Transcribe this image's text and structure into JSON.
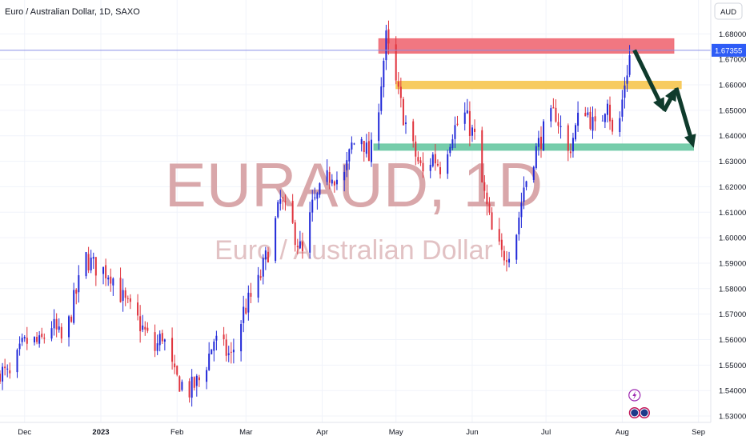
{
  "header": {
    "title": "Euro / Australian Dollar, 1D, SAXO",
    "currency_button": "AUD"
  },
  "watermark": {
    "symbol": "EURAUD, 1D",
    "name": "Euro / Australian Dollar"
  },
  "colors": {
    "up": "#2129d8",
    "down": "#e0333d",
    "resistance_zone": "#f0707a",
    "mid_zone": "#f7c856",
    "support_zone": "#6fcaa6",
    "arrow": "#0f3b2c",
    "last_price_tag": "#2e5cf6",
    "crosshair_line": "#8a8fe6"
  },
  "chart_data": {
    "type": "candlestick",
    "title": "Euro / Australian Dollar, 1D, SAXO",
    "y_axis": {
      "range": [
        1.5275,
        1.6845
      ],
      "tick_labels": [
        "1.68000",
        "1.67000",
        "1.66000",
        "1.65000",
        "1.64000",
        "1.63000",
        "1.62000",
        "1.61000",
        "1.60000",
        "1.59000",
        "1.58000",
        "1.57000",
        "1.56000",
        "1.55000",
        "1.54000",
        "1.53000"
      ],
      "tick_values": [
        1.68,
        1.67,
        1.66,
        1.65,
        1.64,
        1.63,
        1.62,
        1.61,
        1.6,
        1.59,
        1.58,
        1.57,
        1.56,
        1.55,
        1.54,
        1.53
      ]
    },
    "x_axis": {
      "range": [
        "2022-11-21",
        "2023-09-06"
      ],
      "tick_labels": [
        "Dec",
        "2023",
        "Feb",
        "Mar",
        "Apr",
        "May",
        "Jun",
        "Jul",
        "Aug",
        "Sep"
      ],
      "tick_dates": [
        "2022-12-01",
        "2023-01-01",
        "2023-02-01",
        "2023-03-01",
        "2023-04-01",
        "2023-05-01",
        "2023-06-01",
        "2023-07-01",
        "2023-08-01",
        "2023-09-01"
      ]
    },
    "last_price": 1.67355,
    "last_price_label": "1.67355",
    "grid": true,
    "close_path": [
      [
        "2022-11-21",
        1.548
      ],
      [
        "2022-11-25",
        1.545
      ],
      [
        "2022-11-30",
        1.557
      ],
      [
        "2022-12-03",
        1.56
      ],
      [
        "2022-12-07",
        1.558
      ],
      [
        "2022-12-12",
        1.566
      ],
      [
        "2022-12-17",
        1.558
      ],
      [
        "2022-12-21",
        1.575
      ],
      [
        "2022-12-26",
        1.592
      ],
      [
        "2022-12-29",
        1.589
      ],
      [
        "2023-01-05",
        1.586
      ],
      [
        "2023-01-11",
        1.574
      ],
      [
        "2023-01-17",
        1.566
      ],
      [
        "2023-01-23",
        1.556
      ],
      [
        "2023-01-26",
        1.562
      ],
      [
        "2023-01-31",
        1.545
      ],
      [
        "2023-02-06",
        1.54
      ],
      [
        "2023-02-11",
        1.545
      ],
      [
        "2023-02-16",
        1.56
      ],
      [
        "2023-02-23",
        1.553
      ],
      [
        "2023-02-28",
        1.571
      ],
      [
        "2023-03-06",
        1.582
      ],
      [
        "2023-03-11",
        1.598
      ],
      [
        "2023-03-15",
        1.614
      ],
      [
        "2023-03-20",
        1.604
      ],
      [
        "2023-03-24",
        1.593
      ],
      [
        "2023-03-28",
        1.612
      ],
      [
        "2023-04-05",
        1.626
      ],
      [
        "2023-04-09",
        1.62
      ],
      [
        "2023-04-13",
        1.636
      ],
      [
        "2023-04-17",
        1.64
      ],
      [
        "2023-04-20",
        1.631
      ],
      [
        "2023-04-22",
        1.637
      ],
      [
        "2023-04-27",
        1.678
      ],
      [
        "2023-04-30",
        1.664
      ],
      [
        "2023-05-03",
        1.652
      ],
      [
        "2023-05-07",
        1.637
      ],
      [
        "2023-05-12",
        1.625
      ],
      [
        "2023-05-16",
        1.632
      ],
      [
        "2023-05-19",
        1.628
      ],
      [
        "2023-05-24",
        1.642
      ],
      [
        "2023-05-29",
        1.648
      ],
      [
        "2023-06-02",
        1.639
      ],
      [
        "2023-06-05",
        1.621
      ],
      [
        "2023-06-09",
        1.602
      ],
      [
        "2023-06-13",
        1.593
      ],
      [
        "2023-06-18",
        1.597
      ],
      [
        "2023-06-22",
        1.62
      ],
      [
        "2023-06-26",
        1.632
      ],
      [
        "2023-07-01",
        1.644
      ],
      [
        "2023-07-05",
        1.649
      ],
      [
        "2023-07-10",
        1.633
      ],
      [
        "2023-07-14",
        1.646
      ],
      [
        "2023-07-17",
        1.651
      ],
      [
        "2023-07-22",
        1.64
      ],
      [
        "2023-07-26",
        1.656
      ],
      [
        "2023-07-29",
        1.632
      ],
      [
        "2023-08-02",
        1.661
      ],
      [
        "2023-08-05",
        1.676
      ],
      [
        "2023-08-06",
        1.6735
      ]
    ],
    "annotations": [
      {
        "type": "zone",
        "label": "resistance",
        "x_range": [
          "2023-04-24",
          "2023-08-22"
        ],
        "y_range": [
          1.6724,
          1.6781
        ]
      },
      {
        "type": "zone",
        "label": "mid",
        "x_range": [
          "2023-05-01",
          "2023-08-25"
        ],
        "y_range": [
          1.6585,
          1.6614
        ]
      },
      {
        "type": "zone",
        "label": "support",
        "x_range": [
          "2023-04-22",
          "2023-08-30"
        ],
        "y_range": [
          1.6343,
          1.6368
        ]
      },
      {
        "type": "arrow_path",
        "points": [
          [
            "2023-08-06",
            1.6735
          ],
          [
            "2023-08-18",
            1.6498
          ],
          [
            "2023-08-23",
            1.6587
          ],
          [
            "2023-08-30",
            1.6355
          ]
        ]
      },
      {
        "type": "icon",
        "name": "lightning-icon",
        "x": "2023-08-06"
      },
      {
        "type": "icon",
        "name": "flags-icon",
        "x": "2023-08-06"
      },
      {
        "type": "icon",
        "name": "flags-icon",
        "x": "2023-08-10"
      }
    ]
  }
}
